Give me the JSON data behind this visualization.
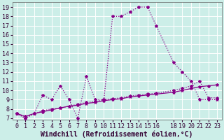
{
  "background_color": "#cceee8",
  "line_color": "#880088",
  "grid_color": "#ffffff",
  "xlabel": "Windchill (Refroidissement éolien,°C)",
  "xlabel_fontsize": 7,
  "tick_fontsize": 6,
  "ylim": [
    6.8,
    19.5
  ],
  "xlim": [
    -0.5,
    23.5
  ],
  "yticks": [
    7,
    8,
    9,
    10,
    11,
    12,
    13,
    14,
    15,
    16,
    17,
    18,
    19
  ],
  "xticks": [
    0,
    1,
    2,
    3,
    4,
    5,
    6,
    7,
    8,
    9,
    10,
    11,
    12,
    13,
    14,
    15,
    16,
    18,
    19,
    20,
    21,
    22,
    23
  ],
  "s1_x": [
    0,
    1,
    2,
    3,
    4,
    5,
    6,
    7,
    8,
    9,
    10,
    11,
    12,
    13,
    14,
    15,
    16,
    18,
    19,
    20,
    21,
    22,
    23
  ],
  "s1_y": [
    7.5,
    7.0,
    7.5,
    9.5,
    9.0,
    10.5,
    9.0,
    7.0,
    11.5,
    9.0,
    9.0,
    18.0,
    18.0,
    18.5,
    19.0,
    19.0,
    17.0,
    13.0,
    12.0,
    11.0,
    9.0,
    9.0,
    9.0
  ],
  "s2_x": [
    0,
    1,
    2,
    3,
    4,
    5,
    6,
    7,
    8,
    9,
    10,
    11,
    12,
    13,
    14,
    15,
    16,
    18,
    19,
    20,
    21,
    22,
    23
  ],
  "s2_y": [
    7.5,
    7.0,
    7.5,
    7.8,
    8.0,
    8.1,
    8.3,
    8.5,
    8.7,
    8.8,
    9.0,
    9.1,
    9.2,
    9.4,
    9.5,
    9.6,
    9.7,
    10.0,
    10.2,
    10.5,
    11.0,
    9.2,
    9.2
  ],
  "s3_x": [
    0,
    1,
    2,
    3,
    4,
    5,
    6,
    7,
    8,
    9,
    10,
    11,
    12,
    13,
    14,
    15,
    16,
    18,
    19,
    20,
    21,
    22,
    23
  ],
  "s3_y": [
    7.5,
    7.2,
    7.5,
    7.7,
    7.9,
    8.1,
    8.3,
    8.4,
    8.6,
    8.7,
    8.9,
    9.0,
    9.1,
    9.3,
    9.4,
    9.5,
    9.6,
    9.8,
    10.0,
    10.2,
    10.4,
    10.5,
    10.6
  ],
  "marker": "*",
  "marker_size": 3,
  "line_width": 0.9
}
